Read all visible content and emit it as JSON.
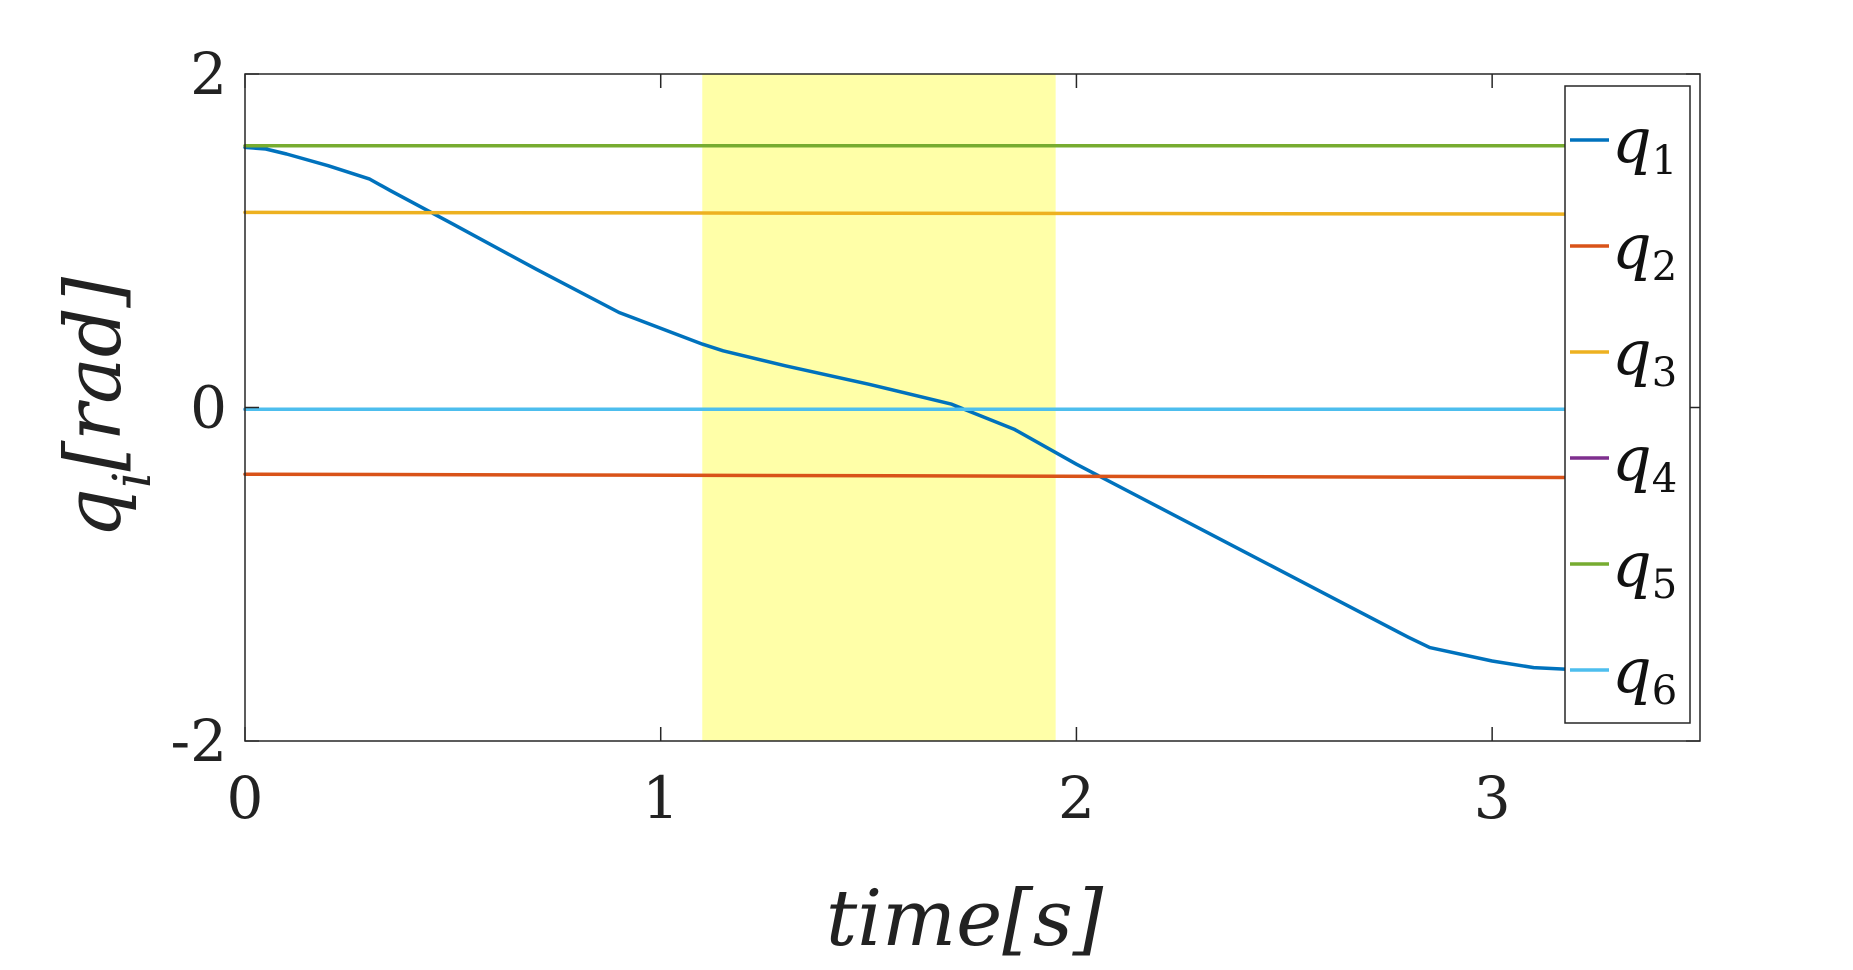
{
  "chart_data": {
    "type": "line",
    "xlabel": "time[s]",
    "ylabel": "q_i[rad]",
    "xlim": [
      0,
      3.5
    ],
    "ylim": [
      -2,
      2
    ],
    "xticks": [
      0,
      1,
      2,
      3
    ],
    "yticks": [
      -2,
      0,
      2
    ],
    "xtick_labels": [
      "0",
      "1",
      "2",
      "3"
    ],
    "ytick_labels": [
      "-2",
      "0",
      "2"
    ],
    "grid": false,
    "legend_position": "right",
    "highlight_region": {
      "x": [
        1.1,
        1.95
      ],
      "color": "#ffff99"
    },
    "series": [
      {
        "name": "q",
        "subscript": "1",
        "color": "#0072bd",
        "x": [
          0,
          0.05,
          0.1,
          0.2,
          0.3,
          0.35,
          0.5,
          0.7,
          0.9,
          1.1,
          1.15,
          1.3,
          1.5,
          1.7,
          1.85,
          2.0,
          2.2,
          2.4,
          2.6,
          2.8,
          2.85,
          3.0,
          3.1,
          3.18
        ],
        "values": [
          1.56,
          1.55,
          1.52,
          1.45,
          1.37,
          1.3,
          1.1,
          0.83,
          0.57,
          0.38,
          0.34,
          0.25,
          0.14,
          0.02,
          -0.13,
          -0.34,
          -0.6,
          -0.86,
          -1.12,
          -1.38,
          -1.44,
          -1.52,
          -1.56,
          -1.57
        ]
      },
      {
        "name": "q",
        "subscript": "2",
        "color": "#d95319",
        "x": [
          0,
          3.18
        ],
        "values": [
          -0.4,
          -0.42
        ]
      },
      {
        "name": "q",
        "subscript": "3",
        "color": "#edb120",
        "x": [
          0,
          3.18
        ],
        "values": [
          1.17,
          1.16
        ]
      },
      {
        "name": "q",
        "subscript": "4",
        "color": "#7e2f8e",
        "x": [
          0,
          3.18
        ],
        "values": [
          -0.01,
          -0.01
        ]
      },
      {
        "name": "q",
        "subscript": "5",
        "color": "#77ac30",
        "x": [
          0,
          3.18
        ],
        "values": [
          1.57,
          1.57
        ]
      },
      {
        "name": "q",
        "subscript": "6",
        "color": "#4dbeee",
        "x": [
          0,
          3.18
        ],
        "values": [
          -0.01,
          -0.01
        ]
      }
    ]
  }
}
